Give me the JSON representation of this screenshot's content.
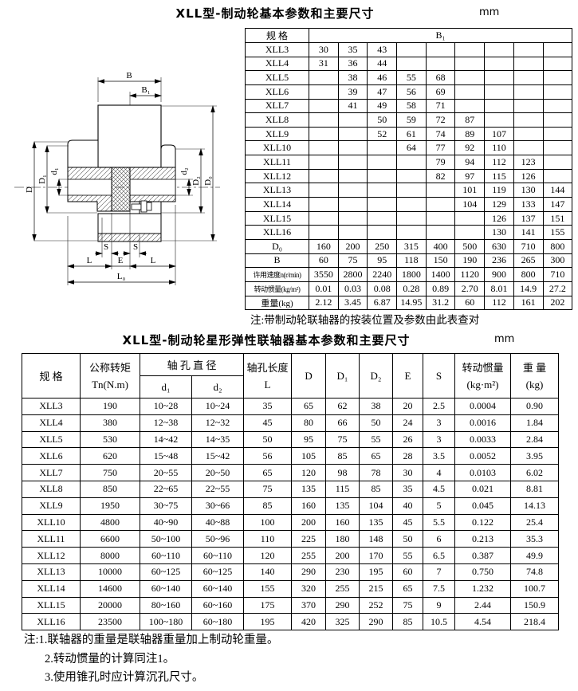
{
  "section1": {
    "title": "XLL型-制动轮基本参数和主要尺寸",
    "unit": "mm",
    "note": "注:带制动轮联轴器的按装位置及参数由此表查对",
    "table": {
      "spec_header": "规 格",
      "group_header": "B₁",
      "rows": [
        {
          "label": "XLL3",
          "values": [
            "30",
            "35",
            "43",
            "",
            "",
            "",
            "",
            "",
            ""
          ]
        },
        {
          "label": "XLL4",
          "values": [
            "31",
            "36",
            "44",
            "",
            "",
            "",
            "",
            "",
            ""
          ]
        },
        {
          "label": "XLL5",
          "values": [
            "",
            "38",
            "46",
            "55",
            "68",
            "",
            "",
            "",
            ""
          ]
        },
        {
          "label": "XLL6",
          "values": [
            "",
            "39",
            "47",
            "56",
            "69",
            "",
            "",
            "",
            ""
          ]
        },
        {
          "label": "XLL7",
          "values": [
            "",
            "41",
            "49",
            "58",
            "71",
            "",
            "",
            "",
            ""
          ]
        },
        {
          "label": "XLL8",
          "values": [
            "",
            "",
            "50",
            "59",
            "72",
            "87",
            "",
            "",
            ""
          ]
        },
        {
          "label": "XLL9",
          "values": [
            "",
            "",
            "52",
            "61",
            "74",
            "89",
            "107",
            "",
            ""
          ]
        },
        {
          "label": "XLL10",
          "values": [
            "",
            "",
            "",
            "64",
            "77",
            "92",
            "110",
            "",
            ""
          ]
        },
        {
          "label": "XLL11",
          "values": [
            "",
            "",
            "",
            "",
            "79",
            "94",
            "112",
            "123",
            ""
          ]
        },
        {
          "label": "XLL12",
          "values": [
            "",
            "",
            "",
            "",
            "82",
            "97",
            "115",
            "126",
            ""
          ]
        },
        {
          "label": "XLL13",
          "values": [
            "",
            "",
            "",
            "",
            "",
            "101",
            "119",
            "130",
            "144"
          ]
        },
        {
          "label": "XLL14",
          "values": [
            "",
            "",
            "",
            "",
            "",
            "104",
            "129",
            "133",
            "147"
          ]
        },
        {
          "label": "XLL15",
          "values": [
            "",
            "",
            "",
            "",
            "",
            "",
            "126",
            "137",
            "151"
          ]
        },
        {
          "label": "XLL16",
          "values": [
            "",
            "",
            "",
            "",
            "",
            "",
            "130",
            "141",
            "155"
          ]
        },
        {
          "label": "D₀",
          "values": [
            "160",
            "200",
            "250",
            "315",
            "400",
            "500",
            "630",
            "710",
            "800"
          ]
        },
        {
          "label": "B",
          "values": [
            "60",
            "75",
            "95",
            "118",
            "150",
            "190",
            "236",
            "265",
            "300"
          ]
        },
        {
          "label": "许用速度n(r/min)",
          "values": [
            "3550",
            "2800",
            "2240",
            "1800",
            "1400",
            "1120",
            "900",
            "800",
            "710"
          ]
        },
        {
          "label": "转动惯量(kg/m²)",
          "values": [
            "0.01",
            "0.03",
            "0.08",
            "0.28",
            "0.89",
            "2.70",
            "8.01",
            "14.9",
            "27.2"
          ]
        },
        {
          "label": "重量(kg)",
          "values": [
            "2.12",
            "3.45",
            "6.87",
            "14.95",
            "31.2",
            "60",
            "112",
            "161",
            "202"
          ]
        }
      ]
    }
  },
  "section2": {
    "title": "XLL型-制动轮星形弹性联轴器基本参数和主要尺寸",
    "unit": "mm",
    "table": {
      "headers": {
        "spec": "规  格",
        "torque_line1": "公称转矩",
        "torque_line2": "Tn(N.m)",
        "bore_dia": "轴 孔 直 径",
        "d1": "d₁",
        "d2": "d₂",
        "bore_len_line1": "轴孔长度",
        "bore_len_line2": "L",
        "D": "D",
        "D1": "D₁",
        "D2": "D₂",
        "E": "E",
        "S": "S",
        "inertia_line1": "转动惯量",
        "inertia_line2": "(kg·m²)",
        "weight_line1": "重 量",
        "weight_line2": "(kg)"
      },
      "rows": [
        [
          "XLL3",
          "190",
          "10~28",
          "10~24",
          "35",
          "65",
          "62",
          "38",
          "20",
          "2.5",
          "0.0004",
          "0.90"
        ],
        [
          "XLL4",
          "380",
          "12~38",
          "12~32",
          "45",
          "80",
          "66",
          "50",
          "24",
          "3",
          "0.0016",
          "1.84"
        ],
        [
          "XLL5",
          "530",
          "14~42",
          "14~35",
          "50",
          "95",
          "75",
          "55",
          "26",
          "3",
          "0.0033",
          "2.84"
        ],
        [
          "XLL6",
          "620",
          "15~48",
          "15~42",
          "56",
          "105",
          "85",
          "65",
          "28",
          "3.5",
          "0.0052",
          "3.95"
        ],
        [
          "XLL7",
          "750",
          "20~55",
          "20~50",
          "65",
          "120",
          "98",
          "78",
          "30",
          "4",
          "0.0103",
          "6.02"
        ],
        [
          "XLL8",
          "850",
          "22~65",
          "22~55",
          "75",
          "135",
          "115",
          "85",
          "35",
          "4.5",
          "0.021",
          "8.81"
        ],
        [
          "XLL9",
          "1950",
          "30~75",
          "30~66",
          "85",
          "160",
          "135",
          "104",
          "40",
          "5",
          "0.045",
          "14.13"
        ],
        [
          "XLL10",
          "4800",
          "40~90",
          "40~88",
          "100",
          "200",
          "160",
          "135",
          "45",
          "5.5",
          "0.122",
          "25.4"
        ],
        [
          "XLL11",
          "6600",
          "50~100",
          "50~96",
          "110",
          "225",
          "180",
          "148",
          "50",
          "6",
          "0.213",
          "35.3"
        ],
        [
          "XLL12",
          "8000",
          "60~110",
          "60~110",
          "120",
          "255",
          "200",
          "170",
          "55",
          "6.5",
          "0.387",
          "49.9"
        ],
        [
          "XLL13",
          "10000",
          "60~125",
          "60~125",
          "140",
          "290",
          "230",
          "195",
          "60",
          "7",
          "0.750",
          "74.8"
        ],
        [
          "XLL14",
          "14600",
          "60~140",
          "60~140",
          "155",
          "320",
          "255",
          "215",
          "65",
          "7.5",
          "1.232",
          "100.7"
        ],
        [
          "XLL15",
          "20000",
          "80~160",
          "60~160",
          "175",
          "370",
          "290",
          "252",
          "75",
          "9",
          "2.44",
          "150.9"
        ],
        [
          "XLL16",
          "23500",
          "100~180",
          "60~180",
          "195",
          "420",
          "325",
          "290",
          "85",
          "10.5",
          "4.54",
          "218.4"
        ]
      ]
    },
    "notes": [
      "注:1.联轴器的重量是联轴器重量加上制动轮重量。",
      "2.转动惯量的计算同注1。",
      "3.使用锥孔时应计算沉孔尺寸。"
    ]
  },
  "drawing": {
    "description": "coupling cross-section with brake wheel",
    "labels": {
      "b": "B",
      "b1": "B₁",
      "d": "D",
      "dcap1": "D₁",
      "d1": "d₁",
      "d2": "d₂",
      "dcap2": "D₂",
      "d0": "D₀",
      "s": "S",
      "l": "L",
      "e": "E",
      "l0": "L₀"
    }
  }
}
